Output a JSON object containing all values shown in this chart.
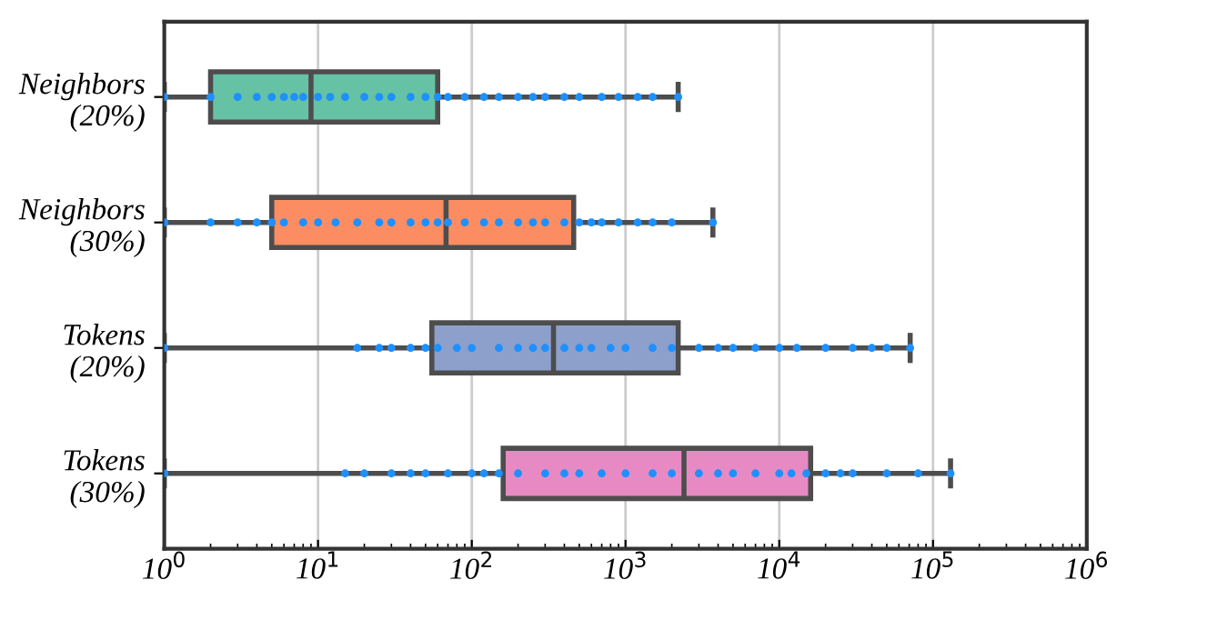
{
  "chart_data": {
    "type": "box",
    "orientation": "horizontal",
    "log": "x",
    "grid": "x",
    "categories": [
      "Neighbors\n(20%)",
      "Neighbors\n(30%)",
      "Tokens\n(20%)",
      "Tokens\n(30%)"
    ],
    "colors": [
      "#66c2a5",
      "#fc8d62",
      "#8da0cb",
      "#e78ac3"
    ],
    "boxes": [
      {
        "low": 1,
        "q1": 2,
        "median": 9,
        "q3": 60,
        "high": 2200
      },
      {
        "low": 1,
        "q1": 5,
        "median": 68,
        "q3": 460,
        "high": 3700
      },
      {
        "low": 1,
        "q1": 55,
        "median": 340,
        "q3": 2200,
        "high": 71000
      },
      {
        "low": 1,
        "q1": 160,
        "median": 2400,
        "q3": 16000,
        "high": 130000
      }
    ],
    "series": [
      {
        "type": "scatter",
        "color": "#1e90ff",
        "x": [
          "Neighbors\n(20%)",
          "Neighbors\n(20%)",
          "Neighbors\n(20%)",
          "Neighbors\n(20%)",
          "Neighbors\n(20%)",
          "Neighbors\n(20%)",
          "Neighbors\n(20%)",
          "Neighbors\n(20%)",
          "Neighbors\n(20%)",
          "Neighbors\n(20%)",
          "Neighbors\n(20%)",
          "Neighbors\n(20%)",
          "Neighbors\n(20%)",
          "Neighbors\n(20%)",
          "Neighbors\n(20%)",
          "Neighbors\n(20%)",
          "Neighbors\n(20%)",
          "Neighbors\n(20%)",
          "Neighbors\n(20%)",
          "Neighbors\n(20%)",
          "Neighbors\n(20%)",
          "Neighbors\n(20%)",
          "Neighbors\n(20%)",
          "Neighbors\n(20%)",
          "Neighbors\n(20%)",
          "Neighbors\n(20%)",
          "Neighbors\n(20%)",
          "Neighbors\n(20%)",
          "Neighbors\n(20%)",
          "Neighbors\n(20%)",
          "Neighbors\n(20%)"
        ],
        "values": [
          1,
          2,
          3,
          4,
          5,
          6,
          7,
          8,
          10,
          12,
          15,
          20,
          25,
          30,
          40,
          50,
          60,
          70,
          90,
          120,
          150,
          200,
          250,
          300,
          400,
          500,
          700,
          900,
          1200,
          1500,
          2200
        ]
      },
      {
        "type": "scatter",
        "color": "#1e90ff",
        "x": [
          "Neighbors\n(30%)",
          "Neighbors\n(30%)",
          "Neighbors\n(30%)",
          "Neighbors\n(30%)",
          "Neighbors\n(30%)",
          "Neighbors\n(30%)",
          "Neighbors\n(30%)",
          "Neighbors\n(30%)",
          "Neighbors\n(30%)",
          "Neighbors\n(30%)",
          "Neighbors\n(30%)",
          "Neighbors\n(30%)",
          "Neighbors\n(30%)",
          "Neighbors\n(30%)",
          "Neighbors\n(30%)",
          "Neighbors\n(30%)",
          "Neighbors\n(30%)",
          "Neighbors\n(30%)",
          "Neighbors\n(30%)",
          "Neighbors\n(30%)",
          "Neighbors\n(30%)",
          "Neighbors\n(30%)",
          "Neighbors\n(30%)",
          "Neighbors\n(30%)",
          "Neighbors\n(30%)",
          "Neighbors\n(30%)",
          "Neighbors\n(30%)",
          "Neighbors\n(30%)",
          "Neighbors\n(30%)",
          "Neighbors\n(30%)",
          "Neighbors\n(30%)"
        ],
        "values": [
          1,
          2,
          3,
          4,
          5,
          6,
          8,
          10,
          13,
          18,
          25,
          30,
          40,
          50,
          60,
          70,
          90,
          120,
          150,
          200,
          250,
          300,
          400,
          500,
          600,
          700,
          900,
          1200,
          1500,
          2000,
          3700
        ]
      },
      {
        "type": "scatter",
        "color": "#1e90ff",
        "x": [
          "Tokens\n(20%)",
          "Tokens\n(20%)",
          "Tokens\n(20%)",
          "Tokens\n(20%)",
          "Tokens\n(20%)",
          "Tokens\n(20%)",
          "Tokens\n(20%)",
          "Tokens\n(20%)",
          "Tokens\n(20%)",
          "Tokens\n(20%)",
          "Tokens\n(20%)",
          "Tokens\n(20%)",
          "Tokens\n(20%)",
          "Tokens\n(20%)",
          "Tokens\n(20%)",
          "Tokens\n(20%)",
          "Tokens\n(20%)",
          "Tokens\n(20%)",
          "Tokens\n(20%)",
          "Tokens\n(20%)",
          "Tokens\n(20%)",
          "Tokens\n(20%)",
          "Tokens\n(20%)",
          "Tokens\n(20%)",
          "Tokens\n(20%)",
          "Tokens\n(20%)",
          "Tokens\n(20%)",
          "Tokens\n(20%)",
          "Tokens\n(20%)",
          "Tokens\n(20%)",
          "Tokens\n(20%)"
        ],
        "values": [
          1,
          18,
          25,
          30,
          40,
          50,
          60,
          80,
          100,
          150,
          200,
          250,
          300,
          400,
          500,
          600,
          800,
          1000,
          1500,
          2000,
          3000,
          4000,
          5000,
          7000,
          10000,
          13000,
          20000,
          30000,
          40000,
          50000,
          71000
        ]
      },
      {
        "type": "scatter",
        "color": "#1e90ff",
        "x": [
          "Tokens\n(30%)",
          "Tokens\n(30%)",
          "Tokens\n(30%)",
          "Tokens\n(30%)",
          "Tokens\n(30%)",
          "Tokens\n(30%)",
          "Tokens\n(30%)",
          "Tokens\n(30%)",
          "Tokens\n(30%)",
          "Tokens\n(30%)",
          "Tokens\n(30%)",
          "Tokens\n(30%)",
          "Tokens\n(30%)",
          "Tokens\n(30%)",
          "Tokens\n(30%)",
          "Tokens\n(30%)",
          "Tokens\n(30%)",
          "Tokens\n(30%)",
          "Tokens\n(30%)",
          "Tokens\n(30%)",
          "Tokens\n(30%)",
          "Tokens\n(30%)",
          "Tokens\n(30%)",
          "Tokens\n(30%)",
          "Tokens\n(30%)",
          "Tokens\n(30%)",
          "Tokens\n(30%)",
          "Tokens\n(30%)",
          "Tokens\n(30%)",
          "Tokens\n(30%)",
          "Tokens\n(30%)"
        ],
        "values": [
          1,
          15,
          20,
          30,
          40,
          50,
          70,
          100,
          120,
          150,
          200,
          300,
          400,
          500,
          700,
          1000,
          1500,
          2000,
          3000,
          4000,
          5000,
          7000,
          10000,
          12000,
          15000,
          20000,
          25000,
          30000,
          50000,
          80000,
          130000
        ]
      }
    ],
    "xlim": [
      1,
      1000000
    ],
    "xticks": [
      {
        "value": 1,
        "label": "10$^{0}$"
      },
      {
        "value": 10,
        "label": "10$^{1}$"
      },
      {
        "value": 100,
        "label": "10$^{2}$"
      },
      {
        "value": 1000,
        "label": "10$^{3}$"
      },
      {
        "value": 10000,
        "label": "10$^{4}$"
      },
      {
        "value": 100000,
        "label": "10$^{5}$"
      },
      {
        "value": 1000000,
        "label": "10$^{6}$"
      }
    ]
  }
}
